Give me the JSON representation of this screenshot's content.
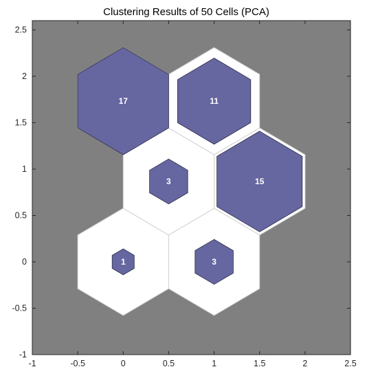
{
  "chart_data": {
    "type": "hexbin-som",
    "title": "Clustering Results of 50 Cells (PCA)",
    "xlabel": "",
    "ylabel": "",
    "xlim": [
      -1,
      2.5
    ],
    "ylim": [
      -1,
      2.6
    ],
    "xticks": [
      "-1",
      "-0.5",
      "0",
      "0.5",
      "1",
      "1.5",
      "2",
      "2.5"
    ],
    "yticks": [
      "-1",
      "-0.5",
      "0",
      "0.5",
      "1",
      "1.5",
      "2",
      "2.5"
    ],
    "colors": {
      "axes_background": "#808080",
      "neuron_fill": "#6666a0",
      "neuron_edge": "#2d2d4a",
      "cell_fill": "#ffffff",
      "cell_edge": "#d0d0d0"
    },
    "cells": [
      {
        "name": "cell-1",
        "x": 0.0,
        "y": 0.0,
        "count": 1,
        "label": "1"
      },
      {
        "name": "cell-2",
        "x": 1.0,
        "y": 0.0,
        "count": 3,
        "label": "3"
      },
      {
        "name": "cell-3",
        "x": 0.5,
        "y": 0.866,
        "count": 3,
        "label": "3"
      },
      {
        "name": "cell-4",
        "x": 1.5,
        "y": 0.866,
        "count": 15,
        "label": "15"
      },
      {
        "name": "cell-5",
        "x": 0.0,
        "y": 1.732,
        "count": 17,
        "label": "17"
      },
      {
        "name": "cell-6",
        "x": 1.0,
        "y": 1.732,
        "count": 11,
        "label": "11"
      }
    ]
  }
}
